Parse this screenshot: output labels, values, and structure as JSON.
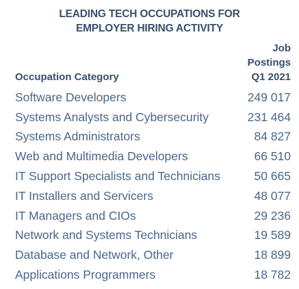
{
  "chart_data": {
    "type": "table",
    "title_lines": [
      "LEADING TECH OCCUPATIONS FOR",
      "EMPLOYER HIRING ACTIVITY"
    ],
    "column_headers": {
      "category": "Occupation Category",
      "value_lines": [
        "Job",
        "Postings",
        "Q1 2021"
      ]
    },
    "rows": [
      {
        "category": "Software Developers",
        "value": "249 017"
      },
      {
        "category": "Systems Analysts and Cybersecurity",
        "value": "231 464"
      },
      {
        "category": "Systems Administrators",
        "value": "84 827"
      },
      {
        "category": "Web and Multimedia Developers",
        "value": "66 510"
      },
      {
        "category": "IT Support Specialists and Technicians",
        "value": "50 665"
      },
      {
        "category": "IT Installers and Servicers",
        "value": "48 077"
      },
      {
        "category": "IT Managers and CIOs",
        "value": "29 236"
      },
      {
        "category": "Network and Systems Technicians",
        "value": "19 589"
      },
      {
        "category": "Database and Network, Other",
        "value": "18 899"
      },
      {
        "category": "Applications Programmers",
        "value": "18 782"
      }
    ]
  },
  "colors": {
    "heading": "#374f6b",
    "body_text": "#4a6788"
  }
}
